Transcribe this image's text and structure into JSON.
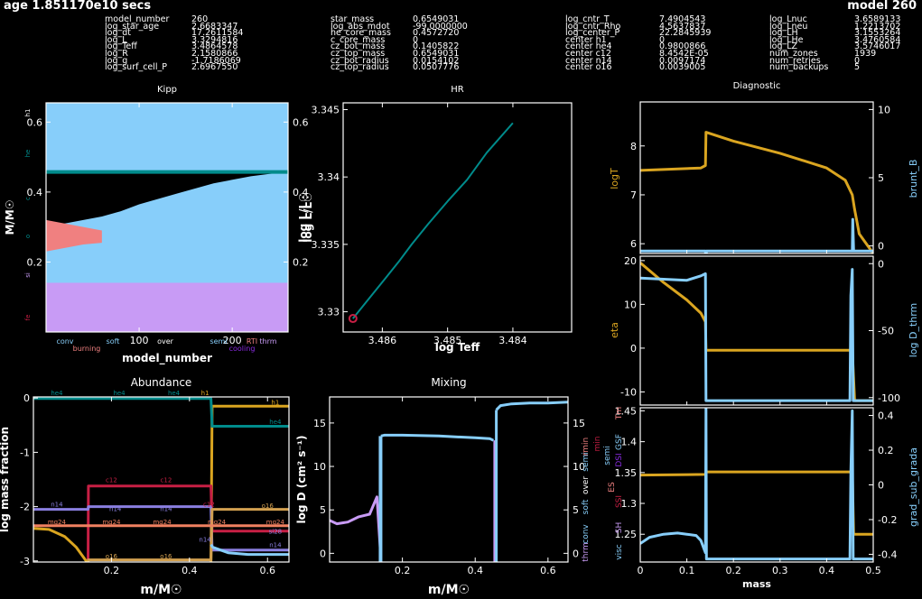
{
  "header": {
    "age": "age 1.851170e10 secs",
    "model": "model 260",
    "col1": [
      [
        "model_number",
        "260"
      ],
      [
        "log_star_age",
        "2.6683347"
      ],
      [
        "log_dt",
        "17.2611584"
      ],
      [
        "log_L",
        "3.3294816"
      ],
      [
        "log_Teff",
        "3.4864578"
      ],
      [
        "log_R",
        "2.1580866"
      ],
      [
        "log_g",
        "-1.7186069"
      ],
      [
        "log_surf_cell_P",
        "2.6967550"
      ]
    ],
    "col2": [
      [
        "star_mass",
        "0.6549031"
      ],
      [
        "log_abs_mdot",
        "-99.0000000"
      ],
      [
        "he_core_mass",
        "0.4572720"
      ],
      [
        "c_core_mass",
        "0"
      ],
      [
        "cz_bot_mass",
        "0.1405822"
      ],
      [
        "cz_top_mass",
        "0.6549031"
      ],
      [
        "cz_bot_radius",
        "0.0154102"
      ],
      [
        "cz_top_radius",
        "0.0507776"
      ]
    ],
    "col3": [
      [
        "log_cntr_T",
        "7.4904543"
      ],
      [
        "log_cntr_Rho",
        "4.5637837"
      ],
      [
        "log_center_P",
        "22.2845939"
      ],
      [
        "center h1",
        "0"
      ],
      [
        "center he4",
        "0.9800866"
      ],
      [
        "center c12",
        "8.4542E-05"
      ],
      [
        "center n14",
        "0.0097174"
      ],
      [
        "center o16",
        "0.0039005"
      ]
    ],
    "col4": [
      [
        "log_Lnuc",
        "3.6589133"
      ],
      [
        "log_Lneu",
        "1.2213702"
      ],
      [
        "log_LH",
        "3.1553264"
      ],
      [
        "log_LHe",
        "3.4760584"
      ],
      [
        "log_LZ",
        "3.5746017"
      ],
      [
        "num_zones",
        "1939"
      ],
      [
        "num_retries",
        "0"
      ],
      [
        "num_backups",
        "5"
      ]
    ]
  },
  "colors": {
    "blue": "#87cefa",
    "teal": "#008b8b",
    "salmon": "#f08080",
    "lavender": "#c89bf5",
    "gold": "#daa520",
    "crimson": "#c71f44",
    "purple": "#8a2be2",
    "axis": "#ffffff"
  },
  "chart_data": [
    {
      "id": "kipp",
      "type": "area",
      "title": "Kipp",
      "xlabel": "model_number",
      "ylabel": "M/M☉",
      "right_ylabel": "log L/L☉",
      "xlim": [
        0,
        260
      ],
      "ylim": [
        0,
        0.655
      ],
      "xticks": [
        "100",
        "200"
      ],
      "yticks": [
        "0.2",
        "0.4",
        "0.6"
      ],
      "right_yticks": [
        "0.2",
        "0.4",
        "0.6"
      ],
      "left_side_labels": [
        "h1",
        "he",
        "c",
        "o",
        "si",
        "fe"
      ],
      "legend_items": [
        {
          "label": "conv",
          "color": "#87cefa"
        },
        {
          "label": "soft",
          "color": "#87cefa"
        },
        {
          "label": "over",
          "color": "#ffffff"
        },
        {
          "label": "semi",
          "color": "#87cefa"
        },
        {
          "label": "RTI",
          "color": "#f08080"
        },
        {
          "label": "thrm",
          "color": "#c89bf5"
        },
        {
          "label": "burning",
          "color": "#f08080"
        },
        {
          "label": "cooling",
          "color": "#8a2be2"
        }
      ],
      "he_core_mass": 0.4573,
      "lower_region_top": 0.1406,
      "envelope_bottom_profile": {
        "x": [
          0,
          20,
          40,
          60,
          80,
          100,
          120,
          140,
          160,
          180,
          200,
          220,
          240,
          260
        ],
        "y": [
          0.3,
          0.31,
          0.32,
          0.33,
          0.345,
          0.365,
          0.38,
          0.395,
          0.41,
          0.425,
          0.435,
          0.445,
          0.452,
          0.457
        ]
      },
      "burning_region": {
        "x": [
          0,
          20,
          40,
          60
        ],
        "top": [
          0.32,
          0.31,
          0.3,
          0.29
        ],
        "bottom": [
          0.23,
          0.24,
          0.25,
          0.255
        ]
      }
    },
    {
      "id": "hr",
      "type": "line",
      "title": "HR",
      "xlabel": "log Teff",
      "ylabel": "log L/L☉",
      "xlim": [
        3.4866,
        3.4831
      ],
      "ylim": [
        3.3285,
        3.3455
      ],
      "xticks": [
        "3.486",
        "3.485",
        "3.484"
      ],
      "yticks": [
        "3.33",
        "3.335",
        "3.34",
        "3.345"
      ],
      "series": [
        {
          "x": [
            3.48645,
            3.4862,
            3.48595,
            3.48575,
            3.48555,
            3.4853,
            3.485,
            3.4847,
            3.4844,
            3.484
          ],
          "y": [
            3.3295,
            3.331,
            3.3325,
            3.3337,
            3.335,
            3.3365,
            3.3382,
            3.3398,
            3.3418,
            3.344
          ]
        }
      ],
      "current_point": {
        "x": 3.48645,
        "y": 3.3295
      }
    },
    {
      "id": "abundance",
      "type": "line",
      "title": "Abundance",
      "xlabel": "m/M☉",
      "ylabel": "log mass fraction",
      "xlim": [
        0,
        0.655
      ],
      "ylim": [
        -3.02,
        0.02
      ],
      "xticks": [
        "0.2",
        "0.4",
        "0.6"
      ],
      "yticks": [
        "-3",
        "-2",
        "-1",
        "0"
      ],
      "series": [
        {
          "name": "h1",
          "color": "#daa520",
          "x": [
            0,
            0.455,
            0.458,
            0.655
          ],
          "y": [
            -3.1,
            -3.1,
            -0.15,
            -0.15
          ]
        },
        {
          "name": "he4",
          "color": "#008b8b",
          "x": [
            0,
            0.455,
            0.458,
            0.655
          ],
          "y": [
            -0.01,
            -0.01,
            -0.52,
            -0.52
          ]
        },
        {
          "name": "c12",
          "color": "#c71f44",
          "x": [
            0,
            0.14,
            0.141,
            0.455,
            0.458,
            0.655
          ],
          "y": [
            -3.1,
            -3.1,
            -1.62,
            -1.62,
            -2.45,
            -2.45
          ]
        },
        {
          "name": "n14",
          "color": "#8a7fe0",
          "x": [
            0,
            0.14,
            0.141,
            0.455,
            0.458,
            0.655
          ],
          "y": [
            -2.05,
            -2.05,
            -2.0,
            -2.0,
            -2.8,
            -2.8
          ]
        },
        {
          "name": "o16",
          "color": "#d2a050",
          "x": [
            0,
            0.14,
            0.141,
            0.455,
            0.458,
            0.655
          ],
          "y": [
            -3.1,
            -3.1,
            -2.98,
            -2.98,
            -2.05,
            -2.05
          ]
        },
        {
          "name": "mg24",
          "color": "#f08060",
          "x": [
            0,
            0.655
          ],
          "y": [
            -2.35,
            -2.35
          ]
        }
      ],
      "curve_series": [
        {
          "name": "lightblue",
          "color": "#87cefa",
          "x": [
            0.455,
            0.46,
            0.5,
            0.55,
            0.6,
            0.655
          ],
          "y": [
            -2.7,
            -2.75,
            -2.85,
            -2.88,
            -2.88,
            -2.88
          ]
        },
        {
          "name": "descend",
          "color": "#daa520",
          "x": [
            0,
            0.04,
            0.08,
            0.11,
            0.13,
            0.14
          ],
          "y": [
            -2.4,
            -2.42,
            -2.55,
            -2.75,
            -2.95,
            -3.05
          ]
        }
      ]
    },
    {
      "id": "mixing",
      "type": "line",
      "title": "Mixing",
      "xlabel": "m/M☉",
      "ylabel": "log D (cm² s⁻¹)",
      "xlim": [
        0,
        0.655
      ],
      "ylim": [
        -1,
        18
      ],
      "xticks": [
        "0.2",
        "0.4",
        "0.6"
      ],
      "yticks": [
        "0",
        "5",
        "10",
        "15"
      ],
      "right_yticks": [
        "0",
        "5",
        "10",
        "15"
      ],
      "right_labels": [
        {
          "text": "thrm",
          "color": "#c89bf5"
        },
        {
          "text": "conv",
          "color": "#87cefa"
        },
        {
          "text": "soft",
          "color": "#87cefa"
        },
        {
          "text": "over",
          "color": "#ffffff"
        },
        {
          "text": "semi",
          "color": "#87cefa"
        },
        {
          "text": "rmin",
          "color": "#f08080"
        }
      ],
      "series": [
        {
          "name": "thrm",
          "color": "#c89bf5",
          "x": [
            0,
            0.02,
            0.05,
            0.08,
            0.11,
            0.13,
            0.14
          ],
          "y": [
            3.8,
            3.4,
            3.6,
            4.2,
            4.5,
            6.5,
            0
          ]
        },
        {
          "name": "conv1",
          "color": "#87cefa",
          "x": [
            0.141,
            0.15,
            0.2,
            0.3,
            0.4,
            0.44,
            0.45
          ],
          "y": [
            13.5,
            13.6,
            13.6,
            13.5,
            13.3,
            13.2,
            13.0
          ]
        },
        {
          "name": "conv2",
          "color": "#87cefa",
          "x": [
            0.458,
            0.47,
            0.5,
            0.55,
            0.6,
            0.655
          ],
          "y": [
            16.5,
            17.0,
            17.2,
            17.3,
            17.3,
            17.4
          ]
        }
      ]
    },
    {
      "id": "diagnostic",
      "type": "line",
      "title": "Diagnostic",
      "xlabel": "mass",
      "xlim": [
        0,
        0.5
      ],
      "xticks": [
        "0",
        "0.1",
        "0.2",
        "0.3",
        "0.4",
        "0.5"
      ],
      "panels": [
        {
          "left_label": "logT",
          "right_label": "brunt_B",
          "ylim": [
            5.8,
            8.9
          ],
          "yticks": [
            "6",
            "7",
            "8"
          ],
          "right_yticks": [
            "0",
            "5",
            "10"
          ],
          "series": [
            {
              "color": "#daa520",
              "x": [
                0,
                0.13,
                0.14,
                0.141,
                0.2,
                0.3,
                0.4,
                0.44,
                0.455,
                0.46,
                0.47,
                0.5
              ],
              "y": [
                7.5,
                7.55,
                7.6,
                8.28,
                8.1,
                7.85,
                7.55,
                7.3,
                7.0,
                6.7,
                6.2,
                5.8
              ]
            },
            {
              "color": "#87cefa",
              "x": [
                0,
                0.14,
                0.141,
                0.142,
                0.455,
                0.456,
                0.458,
                0.5
              ],
              "y": [
                5.85,
                5.85,
                5.55,
                5.85,
                5.85,
                6.5,
                5.85,
                5.85
              ]
            }
          ]
        },
        {
          "left_label": "eta",
          "right_label": "log D_thrm",
          "ylim": [
            -13,
            21
          ],
          "yticks": [
            "-10",
            "0",
            "10",
            "20"
          ],
          "right_yticks": [
            "-100",
            "-50",
            "0"
          ],
          "series": [
            {
              "color": "#daa520",
              "x": [
                0,
                0.05,
                0.1,
                0.13,
                0.14,
                0.141,
                0.45,
                0.455,
                0.46,
                0.5
              ],
              "y": [
                19.5,
                15,
                11,
                8,
                6,
                -0.5,
                -0.5,
                -0.5,
                -12,
                -12
              ]
            },
            {
              "color": "#87cefa",
              "x": [
                0,
                0.1,
                0.13,
                0.14,
                0.141,
                0.45,
                0.452,
                0.455,
                0.457,
                0.5
              ],
              "y": [
                16,
                15.5,
                16.5,
                17,
                -12,
                -12,
                12,
                18,
                -12,
                -12
              ]
            }
          ]
        },
        {
          "left_label": "grad_sub_grada",
          "right_label": "grad_sub_grada",
          "ylim": [
            1.205,
            1.455
          ],
          "yticks": [
            "1.25",
            "1.3",
            "1.35",
            "1.4",
            "1.45"
          ],
          "right_yticks": [
            "-0.4",
            "-0.2",
            "0",
            "0.2",
            "0.4"
          ],
          "left_labels": [
            {
              "text": "visc",
              "color": "#87cefa"
            },
            {
              "text": "SH",
              "color": "#c89bf5"
            },
            {
              "text": "SSI",
              "color": "#c71f44"
            },
            {
              "text": "ES",
              "color": "#f08080"
            },
            {
              "text": "DSI",
              "color": "#8a2be2"
            },
            {
              "text": "GSF",
              "color": "#87cefa"
            },
            {
              "text": "Tm",
              "color": "#f08080"
            },
            {
              "text": "semi",
              "color": "#87cefa"
            },
            {
              "text": "min",
              "color": "#c71f44"
            }
          ],
          "series": [
            {
              "color": "#daa520",
              "x": [
                0,
                0.14,
                0.141,
                0.455,
                0.458,
                0.5
              ],
              "y": [
                1.346,
                1.347,
                1.351,
                1.351,
                1.25,
                1.25
              ]
            },
            {
              "color": "#87cefa",
              "x": [
                0,
                0.02,
                0.05,
                0.08,
                0.1,
                0.12,
                0.13,
                0.14,
                0.141,
                0.142,
                0.45,
                0.452,
                0.455,
                0.457,
                0.5
              ],
              "y": [
                1.235,
                1.245,
                1.25,
                1.252,
                1.25,
                1.248,
                1.24,
                1.22,
                1.46,
                1.21,
                1.21,
                1.35,
                1.45,
                1.21,
                1.21
              ]
            }
          ]
        }
      ]
    }
  ]
}
